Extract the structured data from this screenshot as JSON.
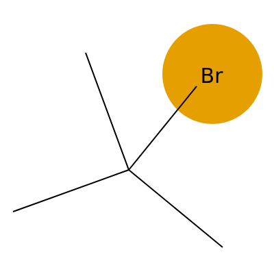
{
  "molecule": {
    "atoms": [
      {
        "symbol": "Br",
        "highlight_color": "#E5A000"
      }
    ]
  }
}
